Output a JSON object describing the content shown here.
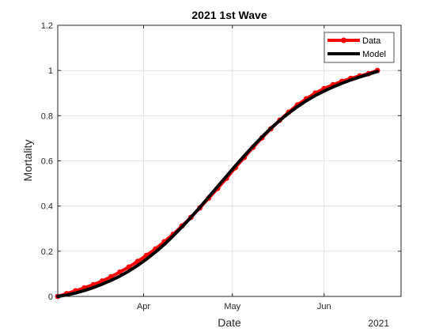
{
  "chart_data": {
    "type": "line",
    "title": "2021 1st Wave",
    "xlabel": "Date",
    "ylabel": "Mortality",
    "x_year_label": "2021",
    "xlim": [
      "2021-03-03",
      "2021-06-27"
    ],
    "ylim": [
      0,
      1.2
    ],
    "x_ticks": [
      {
        "date": "2021-04-01",
        "label": "Apr"
      },
      {
        "date": "2021-05-01",
        "label": "May"
      },
      {
        "date": "2021-06-01",
        "label": "Jun"
      }
    ],
    "y_ticks": [
      {
        "value": 0,
        "label": "0"
      },
      {
        "value": 0.2,
        "label": "0.2"
      },
      {
        "value": 0.4,
        "label": "0.4"
      },
      {
        "value": 0.6,
        "label": "0.6"
      },
      {
        "value": 0.8,
        "label": "0.8"
      },
      {
        "value": 1,
        "label": "1"
      },
      {
        "value": 1.2,
        "label": "1.2"
      }
    ],
    "grid": true,
    "legend_position": "top-right",
    "series": [
      {
        "name": "Data",
        "color": "#ff0000",
        "marker": "circle",
        "points": [
          [
            "2021-03-03",
            0.0
          ],
          [
            "2021-03-06",
            0.012
          ],
          [
            "2021-03-09",
            0.025
          ],
          [
            "2021-03-12",
            0.038
          ],
          [
            "2021-03-15",
            0.052
          ],
          [
            "2021-03-18",
            0.068
          ],
          [
            "2021-03-21",
            0.087
          ],
          [
            "2021-03-24",
            0.108
          ],
          [
            "2021-03-27",
            0.13
          ],
          [
            "2021-03-30",
            0.155
          ],
          [
            "2021-04-02",
            0.182
          ],
          [
            "2021-04-05",
            0.21
          ],
          [
            "2021-04-08",
            0.242
          ],
          [
            "2021-04-11",
            0.275
          ],
          [
            "2021-04-14",
            0.312
          ],
          [
            "2021-04-17",
            0.35
          ],
          [
            "2021-04-20",
            0.392
          ],
          [
            "2021-04-23",
            0.435
          ],
          [
            "2021-04-26",
            0.478
          ],
          [
            "2021-04-29",
            0.523
          ],
          [
            "2021-05-02",
            0.57
          ],
          [
            "2021-05-05",
            0.615
          ],
          [
            "2021-05-08",
            0.66
          ],
          [
            "2021-05-11",
            0.702
          ],
          [
            "2021-05-14",
            0.742
          ],
          [
            "2021-05-17",
            0.78
          ],
          [
            "2021-05-20",
            0.815
          ],
          [
            "2021-05-23",
            0.848
          ],
          [
            "2021-05-26",
            0.875
          ],
          [
            "2021-05-29",
            0.9
          ],
          [
            "2021-06-01",
            0.92
          ],
          [
            "2021-06-04",
            0.937
          ],
          [
            "2021-06-07",
            0.952
          ],
          [
            "2021-06-10",
            0.965
          ],
          [
            "2021-06-13",
            0.976
          ],
          [
            "2021-06-16",
            0.986
          ],
          [
            "2021-06-19",
            1.0
          ]
        ]
      },
      {
        "name": "Model",
        "color": "#000000",
        "marker": "none",
        "points": [
          [
            "2021-03-03",
            0.0
          ],
          [
            "2021-03-06",
            0.006
          ],
          [
            "2021-03-09",
            0.015
          ],
          [
            "2021-03-12",
            0.026
          ],
          [
            "2021-03-15",
            0.039
          ],
          [
            "2021-03-18",
            0.054
          ],
          [
            "2021-03-21",
            0.071
          ],
          [
            "2021-03-24",
            0.09
          ],
          [
            "2021-03-27",
            0.112
          ],
          [
            "2021-03-30",
            0.137
          ],
          [
            "2021-04-02",
            0.165
          ],
          [
            "2021-04-05",
            0.196
          ],
          [
            "2021-04-08",
            0.23
          ],
          [
            "2021-04-11",
            0.268
          ],
          [
            "2021-04-14",
            0.308
          ],
          [
            "2021-04-17",
            0.35
          ],
          [
            "2021-04-20",
            0.394
          ],
          [
            "2021-04-23",
            0.44
          ],
          [
            "2021-04-26",
            0.486
          ],
          [
            "2021-04-29",
            0.532
          ],
          [
            "2021-05-02",
            0.578
          ],
          [
            "2021-05-05",
            0.622
          ],
          [
            "2021-05-08",
            0.665
          ],
          [
            "2021-05-11",
            0.706
          ],
          [
            "2021-05-14",
            0.744
          ],
          [
            "2021-05-17",
            0.779
          ],
          [
            "2021-05-20",
            0.811
          ],
          [
            "2021-05-23",
            0.84
          ],
          [
            "2021-05-26",
            0.866
          ],
          [
            "2021-05-29",
            0.889
          ],
          [
            "2021-06-01",
            0.909
          ],
          [
            "2021-06-04",
            0.927
          ],
          [
            "2021-06-07",
            0.943
          ],
          [
            "2021-06-10",
            0.958
          ],
          [
            "2021-06-13",
            0.971
          ],
          [
            "2021-06-16",
            0.983
          ],
          [
            "2021-06-19",
            0.996
          ]
        ]
      }
    ]
  }
}
